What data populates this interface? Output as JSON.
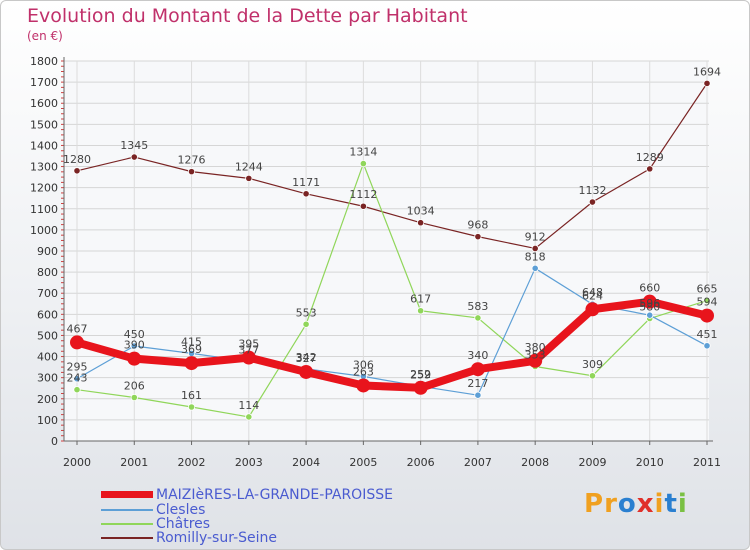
{
  "title": "Evolution du Montant de la Dette par Habitant",
  "unit": "(en €)",
  "logo": {
    "text": "Proxiti",
    "letters": [
      "P",
      "r",
      "o",
      "x",
      "i",
      "t",
      "i"
    ],
    "colors": [
      "#f0a020",
      "#f0a020",
      "#2a7fd0",
      "#e0302a",
      "#f0a020",
      "#2a7fd0",
      "#7ac043"
    ]
  },
  "chart_data": {
    "type": "line",
    "categories": [
      "2000",
      "2001",
      "2002",
      "2003",
      "2004",
      "2005",
      "2006",
      "2007",
      "2008",
      "2009",
      "2010",
      "2011"
    ],
    "ylim": [
      0,
      1800
    ],
    "y_ticks": [
      0,
      100,
      200,
      300,
      400,
      500,
      600,
      700,
      800,
      900,
      1000,
      1100,
      1200,
      1300,
      1400,
      1500,
      1600,
      1700,
      1800
    ],
    "grid": true,
    "legend_position": "bottom-left",
    "series": [
      {
        "name": "MAIZIèRES-LA-GRANDE-PAROISSE",
        "color": "#e8141c",
        "width": 8,
        "marker": 7,
        "values": [
          467,
          390,
          369,
          395,
          327,
          263,
          252,
          340,
          380,
          624,
          660,
          594
        ],
        "labels": [
          "467",
          "390",
          "369",
          "395",
          "327",
          "263",
          "252",
          "340",
          "380",
          "624",
          "660",
          "594"
        ]
      },
      {
        "name": "Clesles",
        "color": "#5d9fd6",
        "width": 1.2,
        "marker": 3.2,
        "values": [
          295,
          450,
          415,
          377,
          342,
          306,
          259,
          217,
          818,
          648,
          596,
          451
        ],
        "labels": [
          "295",
          "450",
          "415",
          "377",
          "342",
          "306",
          "259",
          "217",
          "818",
          "648",
          "596",
          "451"
        ]
      },
      {
        "name": "Châtres",
        "color": "#90d65a",
        "width": 1.2,
        "marker": 3.2,
        "values": [
          243,
          206,
          161,
          114,
          553,
          1314,
          617,
          583,
          353,
          309,
          580,
          665
        ],
        "labels": [
          "243",
          "206",
          "161",
          "114",
          "553",
          "1314",
          "617",
          "583",
          "353",
          "309",
          "580",
          "665"
        ]
      },
      {
        "name": "Romilly-sur-Seine",
        "color": "#7a2424",
        "width": 1.2,
        "marker": 3.2,
        "values": [
          1280,
          1345,
          1276,
          1244,
          1171,
          1112,
          1034,
          968,
          912,
          1132,
          1289,
          1694
        ],
        "labels": [
          "1280",
          "1345",
          "1276",
          "1244",
          "1171",
          "1112",
          "1034",
          "968",
          "912",
          "1132",
          "1289",
          "1694"
        ]
      }
    ]
  }
}
